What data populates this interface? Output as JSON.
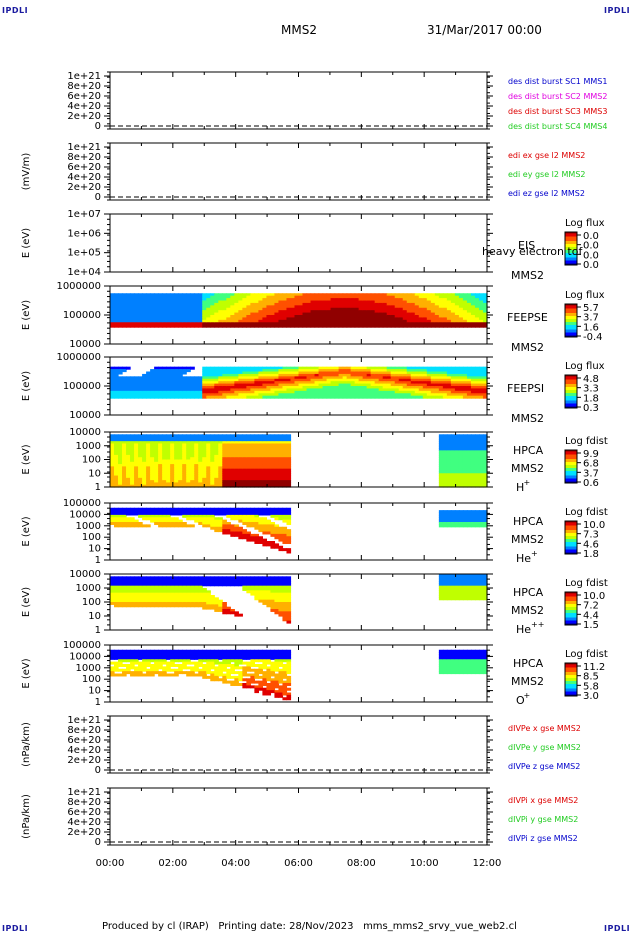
{
  "corner_label": "IPDLI",
  "header": {
    "spacecraft": "MMS2",
    "date": "31/Mar/2017 00:00"
  },
  "footer": {
    "produced": "Produced by cl (IRAP)",
    "printing": "Printing date: 28/Nov/2023",
    "script": "mms_mms2_srvy_vue_web2.cl"
  },
  "colors": {
    "mms1": "#0000cc",
    "mms2": "#e000e0",
    "mms3": "#dd0000",
    "mms4": "#22cc22",
    "x": "#dd0000",
    "y": "#22cc22",
    "z": "#0000cc"
  },
  "chart_data": [
    {
      "type": "line",
      "ylabel": "",
      "yticks": [
        "1e+21",
        "8e+20",
        "6e+20",
        "4e+20",
        "2e+20",
        "0"
      ],
      "legend": [
        {
          "text": "des dist burst SC1 MMS1",
          "color": "mms1"
        },
        {
          "text": "des dist burst SC2 MMS2",
          "color": "mms2"
        },
        {
          "text": "des dist burst SC3 MMS3",
          "color": "mms3"
        },
        {
          "text": "des dist burst SC4 MMS4",
          "color": "mms4"
        }
      ],
      "zero_line": true
    },
    {
      "type": "line",
      "ylabel": "(mV/m)",
      "yticks": [
        "1e+21",
        "8e+20",
        "6e+20",
        "4e+20",
        "2e+20",
        "0"
      ],
      "legend": [
        {
          "text": "edi ex gse l2 MMS2",
          "color": "x"
        },
        {
          "text": "edi ey gse l2 MMS2",
          "color": "y"
        },
        {
          "text": "edi ez gse l2 MMS2",
          "color": "z"
        }
      ],
      "zero_line": true
    },
    {
      "type": "heatmap",
      "ylabel": "E (eV)",
      "yticks": [
        "1e+07",
        "1e+06",
        "1e+05",
        "1e+04"
      ],
      "inst": "EIS",
      "inst2": "MMS2",
      "overlay": "heavy electron tof",
      "cbar_title": "Log flux",
      "cbar_ticks": [
        "0.0",
        "0.0",
        "0.0",
        "0.0"
      ],
      "spec": "none"
    },
    {
      "type": "heatmap",
      "ylabel": "E (eV)",
      "yticks": [
        "1000000",
        "100000",
        "10000"
      ],
      "inst": "FEEPSE",
      "inst2": "MMS2",
      "cbar_title": "Log flux",
      "cbar_ticks": [
        "5.7",
        "3.7",
        "1.6",
        "-0.4"
      ],
      "spec": "feepse"
    },
    {
      "type": "heatmap",
      "ylabel": "E (eV)",
      "yticks": [
        "1000000",
        "100000",
        "10000"
      ],
      "inst": "FEEPSI",
      "inst2": "MMS2",
      "cbar_title": "Log flux",
      "cbar_ticks": [
        "4.8",
        "3.3",
        "1.8",
        "0.3"
      ],
      "spec": "feepsi"
    },
    {
      "type": "heatmap",
      "ylabel": "E (eV)",
      "yticks": [
        "10000",
        "1000",
        "100",
        "10",
        "1"
      ],
      "inst": "HPCA",
      "inst2": "MMS2",
      "species": "H",
      "species_sup": "+",
      "cbar_title": "Log fdist",
      "cbar_ticks": [
        "9.9",
        "6.8",
        "3.7",
        "0.6"
      ],
      "spec": "hplus"
    },
    {
      "type": "heatmap",
      "ylabel": "E (eV)",
      "yticks": [
        "100000",
        "10000",
        "1000",
        "100",
        "10",
        "1"
      ],
      "inst": "HPCA",
      "inst2": "MMS2",
      "species": "He",
      "species_sup": "+",
      "cbar_title": "Log fdist",
      "cbar_ticks": [
        "10.0",
        "7.3",
        "4.6",
        "1.8"
      ],
      "spec": "heplus"
    },
    {
      "type": "heatmap",
      "ylabel": "E (eV)",
      "yticks": [
        "10000",
        "1000",
        "100",
        "10",
        "1"
      ],
      "inst": "HPCA",
      "inst2": "MMS2",
      "species": "He",
      "species_sup": "++",
      "cbar_title": "Log fdist",
      "cbar_ticks": [
        "10.0",
        "7.2",
        "4.4",
        "1.5"
      ],
      "spec": "hepp"
    },
    {
      "type": "heatmap",
      "ylabel": "E (eV)",
      "yticks": [
        "100000",
        "10000",
        "1000",
        "100",
        "10",
        "1"
      ],
      "inst": "HPCA",
      "inst2": "MMS2",
      "species": "O",
      "species_sup": "+",
      "cbar_title": "Log fdist",
      "cbar_ticks": [
        "11.2",
        "8.5",
        "5.8",
        "3.0"
      ],
      "spec": "oplus"
    },
    {
      "type": "line",
      "ylabel": "(nPa/km)",
      "yticks": [
        "1e+21",
        "8e+20",
        "6e+20",
        "4e+20",
        "2e+20",
        "0"
      ],
      "legend": [
        {
          "text": "dIVPe x gse MMS2",
          "color": "x"
        },
        {
          "text": "dIVPe y gse MMS2",
          "color": "y"
        },
        {
          "text": "dIVPe z gse MMS2",
          "color": "z"
        }
      ],
      "zero_line": true
    },
    {
      "type": "line",
      "ylabel": "(nPa/km)",
      "yticks": [
        "1e+21",
        "8e+20",
        "6e+20",
        "4e+20",
        "2e+20",
        "0"
      ],
      "legend": [
        {
          "text": "dIVPi x gse MMS2",
          "color": "x"
        },
        {
          "text": "dIVPi y gse MMS2",
          "color": "y"
        },
        {
          "text": "dIVPi z gse MMS2",
          "color": "z"
        }
      ],
      "zero_line": true
    }
  ],
  "time_axis": [
    "00:00",
    "02:00",
    "04:00",
    "06:00",
    "08:00",
    "10:00",
    "12:00"
  ]
}
